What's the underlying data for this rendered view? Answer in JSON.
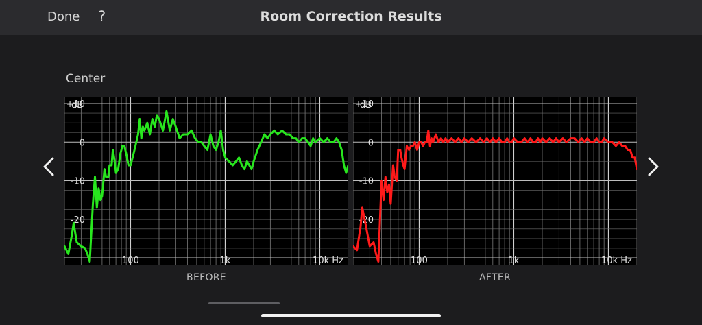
{
  "header": {
    "done_label": "Done",
    "help_label": "?",
    "title": "Room Correction Results"
  },
  "section_label": "Center",
  "nav": {
    "prev_icon": "chevron-left-icon",
    "next_icon": "chevron-right-icon"
  },
  "colors": {
    "before": "#28e61e",
    "after": "#ff1a1a",
    "grid": "#8c8c8c",
    "background": "#000000"
  },
  "chart_data": [
    {
      "type": "line",
      "caption": "BEFORE",
      "ylabel": "dB",
      "x_scale": "log",
      "xlim": [
        20,
        20000
      ],
      "ylim": [
        -30,
        10
      ],
      "yticks": [
        "+10",
        "0",
        "-10",
        "-20"
      ],
      "xticks": [
        "100",
        "1k",
        "10k Hz"
      ],
      "grid": true,
      "series": [
        {
          "x": [
            20,
            22,
            24,
            25,
            27,
            30,
            33,
            35,
            37,
            40,
            42,
            44,
            46,
            48,
            50,
            53,
            55,
            58,
            60,
            63,
            65,
            68,
            70,
            74,
            78,
            82,
            86,
            90,
            95,
            100,
            105,
            110,
            115,
            120,
            125,
            130,
            135,
            140,
            150,
            160,
            170,
            180,
            190,
            200,
            220,
            240,
            260,
            280,
            300,
            330,
            360,
            400,
            440,
            480,
            520,
            560,
            600,
            650,
            700,
            750,
            800,
            850,
            900,
            950,
            1000,
            1100,
            1200,
            1300,
            1400,
            1500,
            1600,
            1700,
            1800,
            1900,
            2000,
            2200,
            2400,
            2600,
            2800,
            3000,
            3300,
            3600,
            4000,
            4400,
            4800,
            5200,
            5600,
            6000,
            6500,
            7000,
            7500,
            8000,
            8500,
            9000,
            10000,
            11000,
            12000,
            13000,
            14000,
            15000,
            16000,
            17000,
            18000,
            19000,
            20000
          ],
          "y": [
            -27,
            -29,
            -24,
            -21,
            -26,
            -27,
            -27.5,
            -29,
            -31,
            -16,
            -9,
            -17,
            -12,
            -15,
            -14,
            -7,
            -9,
            -9,
            -6,
            -6,
            -2,
            -5,
            -8,
            -7,
            -3,
            -1,
            -1,
            -3,
            -6,
            -6,
            -4,
            -2,
            0,
            2,
            6,
            1,
            4,
            3,
            5,
            2,
            6,
            4,
            7,
            6,
            3,
            8,
            3,
            6,
            4,
            1,
            2,
            2,
            3,
            1,
            0,
            0,
            -1,
            -2,
            2,
            -1,
            -2,
            0,
            3,
            -2,
            -4,
            -5,
            -6,
            -5,
            -4,
            -6,
            -7,
            -5,
            -6,
            -7,
            -5,
            -2,
            0,
            2,
            1,
            2,
            3,
            2,
            3,
            2,
            2,
            1,
            1,
            0,
            1,
            1,
            0,
            -1,
            1,
            0,
            1,
            0,
            1,
            0,
            0,
            1,
            0,
            -2,
            -6,
            -8,
            -6
          ]
        }
      ]
    },
    {
      "type": "line",
      "caption": "AFTER",
      "ylabel": "dB",
      "x_scale": "log",
      "xlim": [
        20,
        20000
      ],
      "ylim": [
        -30,
        10
      ],
      "yticks": [
        "+10",
        "0",
        "-10",
        "-20"
      ],
      "xticks": [
        "100",
        "1k",
        "10k Hz"
      ],
      "grid": true,
      "series": [
        {
          "x": [
            20,
            22,
            24,
            25,
            27,
            30,
            33,
            35,
            37,
            40,
            42,
            44,
            46,
            48,
            50,
            53,
            55,
            58,
            60,
            63,
            65,
            68,
            70,
            74,
            78,
            82,
            86,
            90,
            95,
            100,
            105,
            110,
            115,
            120,
            125,
            130,
            135,
            140,
            150,
            160,
            170,
            180,
            190,
            200,
            220,
            240,
            260,
            280,
            300,
            330,
            360,
            400,
            440,
            480,
            520,
            560,
            600,
            650,
            700,
            750,
            800,
            850,
            900,
            950,
            1000,
            1100,
            1200,
            1300,
            1400,
            1500,
            1600,
            1700,
            1800,
            1900,
            2000,
            2200,
            2400,
            2600,
            2800,
            3000,
            3300,
            3600,
            4000,
            4400,
            4800,
            5200,
            5600,
            6000,
            6500,
            7000,
            7500,
            8000,
            8500,
            9000,
            10000,
            11000,
            12000,
            13000,
            14000,
            15000,
            16000,
            17000,
            18000,
            19000,
            20000
          ],
          "y": [
            -27,
            -28,
            -22,
            -17,
            -21,
            -27,
            -26,
            -29,
            -31,
            -10,
            -15,
            -9,
            -13,
            -11,
            -16,
            -6,
            -9,
            -10,
            -2,
            -2,
            -4,
            -6,
            -7,
            -1,
            -2,
            -1,
            -1,
            0,
            -2,
            0,
            0,
            -1,
            0,
            0,
            3,
            -1,
            1,
            0,
            2,
            0,
            1,
            0,
            1,
            0,
            1,
            0,
            1,
            0,
            1,
            0,
            1,
            0,
            1,
            0,
            1,
            0,
            1,
            0,
            1,
            0,
            0,
            1,
            0,
            0,
            1,
            0,
            0,
            1,
            0,
            1,
            0,
            0,
            1,
            0,
            1,
            0,
            1,
            0,
            1,
            0,
            1,
            0,
            1,
            1,
            0,
            1,
            0,
            1,
            0,
            0,
            1,
            0,
            0,
            1,
            0,
            0,
            -1,
            0,
            -1,
            -1,
            -2,
            -2,
            -4,
            -4,
            -7
          ]
        }
      ]
    }
  ]
}
